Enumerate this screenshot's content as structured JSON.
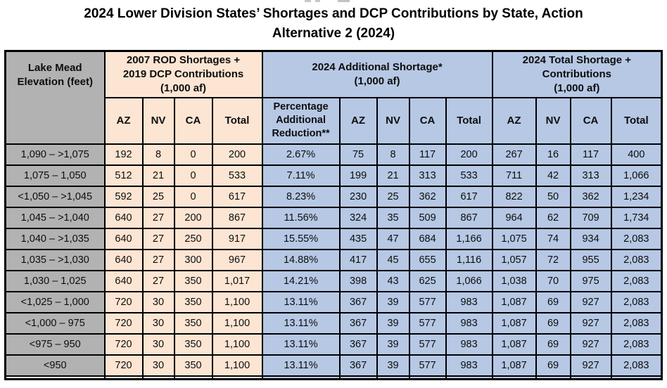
{
  "title": {
    "line1": "2024 Lower Division States’ Shortages and DCP Contributions by State, Action",
    "line2": "Alternative 2 (2024)"
  },
  "colors": {
    "header_gray": "#b2b2b2",
    "rod_peach": "#fce5d3",
    "shortage_blue": "#b6c8e4",
    "border": "#000000"
  },
  "table": {
    "corner_header": "Lake Mead Elevation (feet)",
    "groups": [
      {
        "lines": [
          "2007 ROD Shortages +",
          "2019 DCP Contributions",
          "(1,000 af)"
        ],
        "columns": [
          "AZ",
          "NV",
          "CA",
          "Total"
        ]
      },
      {
        "lines": [
          "2024 Additional Shortage*",
          "(1,000 af)"
        ],
        "columns": [
          "Percentage Additional Reduction**",
          "AZ",
          "NV",
          "CA",
          "Total"
        ]
      },
      {
        "lines": [
          "2024 Total Shortage +",
          "Contributions",
          "(1,000 af)"
        ],
        "columns": [
          "AZ",
          "NV",
          "CA",
          "Total"
        ]
      }
    ],
    "rows": [
      {
        "elevation": "1,090 – >1,075",
        "values": [
          "192",
          "8",
          "0",
          "200",
          "2.67%",
          "75",
          "8",
          "117",
          "200",
          "267",
          "16",
          "117",
          "400"
        ]
      },
      {
        "elevation": "1,075 – 1,050",
        "values": [
          "512",
          "21",
          "0",
          "533",
          "7.11%",
          "199",
          "21",
          "313",
          "533",
          "711",
          "42",
          "313",
          "1,066"
        ]
      },
      {
        "elevation": "<1,050 – >1,045",
        "values": [
          "592",
          "25",
          "0",
          "617",
          "8.23%",
          "230",
          "25",
          "362",
          "617",
          "822",
          "50",
          "362",
          "1,234"
        ]
      },
      {
        "elevation": "1,045 – >1,040",
        "values": [
          "640",
          "27",
          "200",
          "867",
          "11.56%",
          "324",
          "35",
          "509",
          "867",
          "964",
          "62",
          "709",
          "1,734"
        ]
      },
      {
        "elevation": "1,040 – >1,035",
        "values": [
          "640",
          "27",
          "250",
          "917",
          "15.55%",
          "435",
          "47",
          "684",
          "1,166",
          "1,075",
          "74",
          "934",
          "2,083"
        ]
      },
      {
        "elevation": "1,035 – >1,030",
        "values": [
          "640",
          "27",
          "300",
          "967",
          "14.88%",
          "417",
          "45",
          "655",
          "1,116",
          "1,057",
          "72",
          "955",
          "2,083"
        ]
      },
      {
        "elevation": "1,030 – 1,025",
        "values": [
          "640",
          "27",
          "350",
          "1,017",
          "14.21%",
          "398",
          "43",
          "625",
          "1,066",
          "1,038",
          "70",
          "975",
          "2,083"
        ]
      },
      {
        "elevation": "<1,025 – 1,000",
        "values": [
          "720",
          "30",
          "350",
          "1,100",
          "13.11%",
          "367",
          "39",
          "577",
          "983",
          "1,087",
          "69",
          "927",
          "2,083"
        ]
      },
      {
        "elevation": "<1,000 – 975",
        "values": [
          "720",
          "30",
          "350",
          "1,100",
          "13.11%",
          "367",
          "39",
          "577",
          "983",
          "1,087",
          "69",
          "927",
          "2,083"
        ]
      },
      {
        "elevation": "<975 – 950",
        "values": [
          "720",
          "30",
          "350",
          "1,100",
          "13.11%",
          "367",
          "39",
          "577",
          "983",
          "1,087",
          "69",
          "927",
          "2,083"
        ]
      },
      {
        "elevation": "<950",
        "values": [
          "720",
          "30",
          "350",
          "1,100",
          "13.11%",
          "367",
          "39",
          "577",
          "983",
          "1,087",
          "69",
          "927",
          "2,083"
        ]
      }
    ]
  }
}
